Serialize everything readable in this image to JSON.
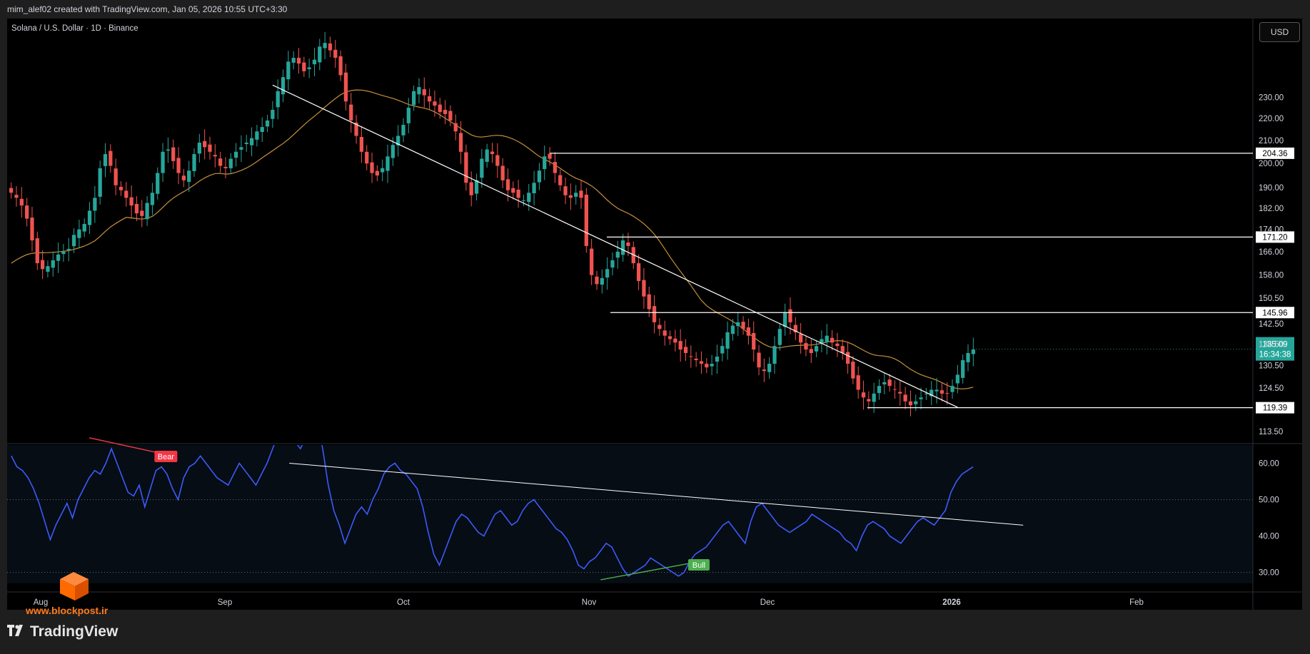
{
  "header": {
    "credit": "mim_alef02 created with TradingView.com, Jan 05, 2026 10:55 UTC+3:30",
    "symbol": "Solana / U.S. Dollar · 1D · Binance",
    "currency_button": "USD"
  },
  "footer": {
    "watermark": "www.blockpost.ir",
    "brand": "TradingView"
  },
  "colors": {
    "up": "#26a69a",
    "down": "#ef5350",
    "ma": "#c8913c",
    "rsi": "#3d5afe",
    "bear": "#f23645",
    "bull": "#4caf50",
    "line": "#ffffff"
  },
  "chart_data": [
    {
      "type": "candlestick",
      "title": "Solana / U.S. Dollar · 1D · Binance",
      "y_scale": "log",
      "ylim": [
        111,
        270
      ],
      "y_ticks": [
        113.5,
        124.5,
        130.5,
        136.5,
        142.5,
        150.5,
        158.0,
        166.0,
        174.0,
        182.0,
        190.0,
        200.0,
        210.0,
        220.0,
        230.0
      ],
      "y_tick_labels": [
        "113.50",
        "124.50",
        "130.50",
        "136.50",
        "142.50",
        "150.50",
        "158.00",
        "166.00",
        "174.00",
        "182.00",
        "190.00",
        "200.00",
        "210.00",
        "220.00",
        "230.00"
      ],
      "x_labels": [
        "Aug",
        "Sep",
        "Oct",
        "Nov",
        "Dec",
        "2026",
        "Feb"
      ],
      "last_price": "135.09",
      "countdown": "16:34:38",
      "closes_approx": [
        188,
        186,
        183,
        178,
        170,
        162,
        160,
        161,
        163,
        165,
        166,
        167,
        172,
        174,
        176,
        181,
        186,
        198,
        204,
        199,
        191,
        189,
        186,
        183,
        180,
        179,
        184,
        188,
        196,
        205,
        206,
        201,
        196,
        193,
        197,
        204,
        209,
        207,
        205,
        203,
        199,
        198,
        202,
        205,
        207,
        209,
        211,
        214,
        216,
        219,
        224,
        233,
        240,
        248,
        250,
        247,
        243,
        245,
        249,
        256,
        258,
        254,
        250,
        241,
        228,
        219,
        212,
        205,
        200,
        196,
        195,
        198,
        203,
        208,
        212,
        217,
        225,
        233,
        235,
        231,
        228,
        226,
        223,
        222,
        219,
        214,
        205,
        192,
        187,
        193,
        202,
        206,
        204,
        199,
        193,
        189,
        188,
        186,
        185,
        188,
        192,
        197,
        203,
        202,
        196,
        191,
        187,
        186,
        188,
        186,
        168,
        158,
        155,
        157,
        160,
        163,
        166,
        170,
        168,
        162,
        156,
        151,
        147,
        143,
        141,
        139,
        138,
        137,
        135,
        134,
        133,
        132,
        131,
        130,
        131,
        133,
        136,
        140,
        142,
        143,
        141,
        139,
        135,
        130,
        129,
        131,
        136,
        141,
        146,
        143,
        140,
        137,
        135,
        134,
        136,
        138,
        139,
        137,
        136,
        134,
        131,
        127,
        124,
        122,
        121,
        123,
        125,
        126,
        125,
        124,
        123,
        121,
        120,
        121,
        122,
        123,
        124,
        124,
        123,
        123,
        125,
        128,
        132,
        134,
        135
      ],
      "moving_average": {
        "name": "",
        "start": 162,
        "end": 133
      },
      "horizontal_levels": [
        {
          "label": "204.36",
          "value": 204.36
        },
        {
          "label": "171.20",
          "value": 171.2
        },
        {
          "label": "145.96",
          "value": 145.96
        },
        {
          "label": "119.39",
          "value": 119.39
        }
      ],
      "trendline": {
        "from": [
          50,
          236
        ],
        "to": [
          181,
          119.5
        ]
      }
    },
    {
      "type": "line",
      "series_name": "",
      "ylim": [
        27,
        65
      ],
      "y_ticks": [
        30,
        40,
        50,
        60
      ],
      "y_tick_labels": [
        "30.00",
        "40.00",
        "50.00",
        "60.00"
      ],
      "midline": 50,
      "values": [
        62,
        59,
        58,
        56,
        53,
        49,
        44,
        39,
        43,
        46,
        49,
        45,
        50,
        53,
        56,
        58,
        57,
        60,
        64,
        60,
        56,
        52,
        51,
        54,
        48,
        53,
        58,
        59,
        57,
        53,
        50,
        56,
        59,
        60,
        62,
        60,
        58,
        56,
        55,
        54,
        57,
        60,
        58,
        56,
        54,
        57,
        60,
        64,
        68,
        70,
        69,
        66,
        64,
        67,
        72,
        71,
        64,
        54,
        47,
        43,
        38,
        42,
        46,
        48,
        46,
        50,
        53,
        57,
        59,
        60,
        58,
        57,
        55,
        53,
        48,
        41,
        35,
        32,
        36,
        40,
        44,
        46,
        45,
        43,
        41,
        40,
        43,
        46,
        47,
        45,
        43,
        44,
        47,
        49,
        50,
        48,
        46,
        44,
        42,
        41,
        39,
        36,
        32,
        31,
        33,
        34,
        36,
        38,
        37,
        34,
        31,
        29,
        30,
        31,
        32,
        34,
        33,
        32,
        31,
        30,
        29,
        30,
        33,
        35,
        36,
        37,
        39,
        41,
        43,
        44,
        42,
        40,
        38,
        44,
        48,
        49,
        47,
        45,
        43,
        42,
        41,
        42,
        43,
        44,
        46,
        45,
        44,
        43,
        42,
        41,
        39,
        38,
        36,
        40,
        43,
        44,
        43,
        42,
        40,
        39,
        38,
        40,
        42,
        44,
        45,
        44,
        43,
        45,
        47,
        52,
        55,
        57,
        58,
        59
      ],
      "trendline": {
        "from": [
          50,
          60
        ],
        "to": [
          182,
          43
        ]
      },
      "bear_divergence": {
        "label": "Bear",
        "from": [
          14,
          67
        ],
        "to": [
          26,
          63
        ]
      },
      "bull_divergence": {
        "label": "Bull",
        "from": [
          106,
          28
        ],
        "to": [
          122,
          32.5
        ]
      }
    }
  ]
}
